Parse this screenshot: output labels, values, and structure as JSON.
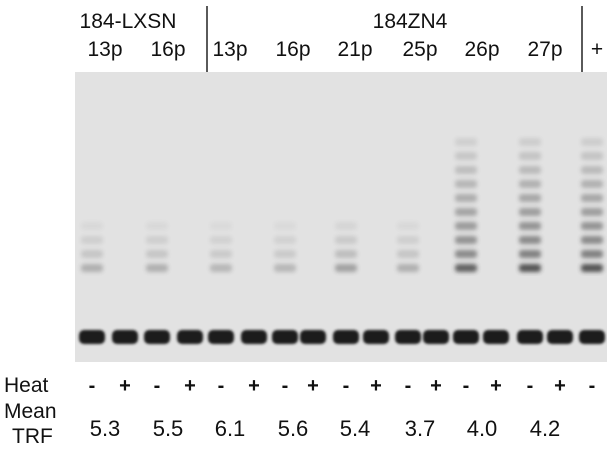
{
  "header": {
    "groups": [
      "184-LXSN",
      "184ZN4"
    ],
    "lanes": [
      "13p",
      "16p",
      "13p",
      "16p",
      "21p",
      "25p",
      "26p",
      "27p",
      "+"
    ]
  },
  "heat": {
    "label": "Heat",
    "signs": [
      "-",
      "+",
      "-",
      "+",
      "-",
      "+",
      "-",
      "+",
      "-",
      "+",
      "-",
      "+",
      "-",
      "+",
      "-",
      "+",
      "-"
    ]
  },
  "mean_trf": {
    "label_line1": "Mean",
    "label_line2": "TRF",
    "values": [
      "5.3",
      "5.5",
      "6.1",
      "5.6",
      "5.4",
      "3.7",
      "4.0",
      "4.2"
    ]
  }
}
